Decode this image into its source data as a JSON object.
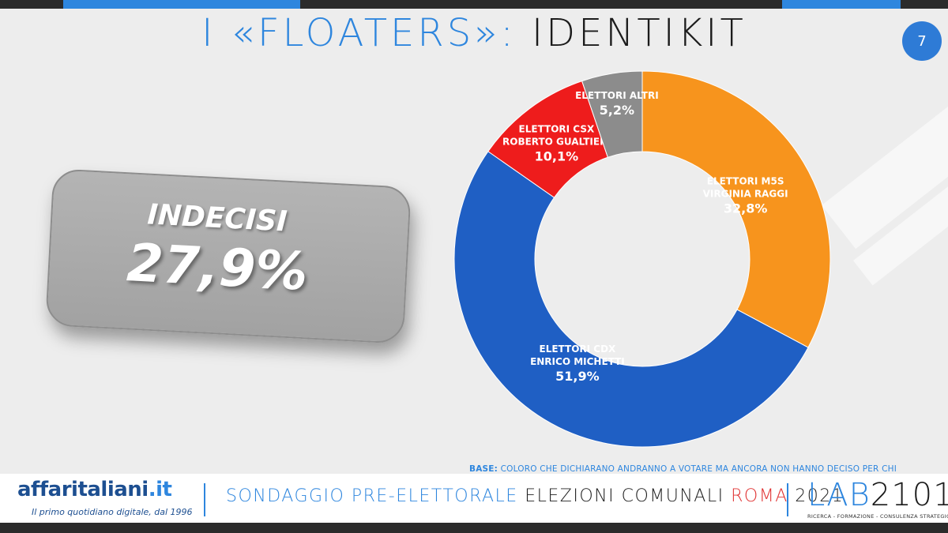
{
  "header": {
    "title_part1": "I «FLOATERS»:",
    "title_part2": "IDENTIKIT",
    "page_number": "7"
  },
  "indecisi": {
    "label": "INDECISI",
    "value": "27,9%"
  },
  "chart_data": {
    "type": "pie",
    "donut": true,
    "categories": [
      "ELETTORI M5S VIRGINIA RAGGI",
      "ELETTORI CDX ENRICO MICHETTI",
      "ELETTORI CSX ROBERTO GUALTIERI",
      "ELETTORI ALTRI"
    ],
    "values": [
      32.8,
      51.9,
      10.1,
      5.2
    ],
    "slices": [
      {
        "line1": "ELETTORI M5S",
        "line2": "VIRGINIA RAGGI",
        "value_label": "32,8%",
        "value": 32.8,
        "color": "#f7941d"
      },
      {
        "line1": "ELETTORI CDX",
        "line2": "ENRICO MICHETTI",
        "value_label": "51,9%",
        "value": 51.9,
        "color": "#1f5fc4"
      },
      {
        "line1": "ELETTORI CSX",
        "line2": "ROBERTO GUALTIERI",
        "value_label": "10,1%",
        "value": 10.1,
        "color": "#ee1c1c"
      },
      {
        "line1": "ELETTORI ALTRI",
        "line2": "",
        "value_label": "5,2%",
        "value": 5.2,
        "color": "#8c8c8c"
      }
    ]
  },
  "base_note": {
    "prefix": "BASE:",
    "text": "COLORO CHE DICHIARANO ANDRANNO A VOTARE MA ANCORA NON HANNO DECISO PER CHI"
  },
  "footer": {
    "brand_main": "affaritaliani",
    "brand_tld": ".it",
    "brand_tagline": "Il primo quotidiano digitale, dal 1996",
    "survey_part1": "SONDAGGIO PRE-ELETTORALE",
    "survey_part2": "ELEZIONI COMUNALI",
    "survey_part3": "ROMA",
    "survey_part4": "2021",
    "lab_prefix": "LAB",
    "lab_number": "2101",
    "lab_tagline": "RICERCA - FORMAZIONE - CONSULENZA STRATEGICA"
  },
  "colors": {
    "accent_blue": "#2e86de",
    "m5s_orange": "#f7941d",
    "cdx_blue": "#1f5fc4",
    "csx_red": "#ee1c1c",
    "altri_gray": "#8c8c8c",
    "roma_red": "#e03131"
  }
}
